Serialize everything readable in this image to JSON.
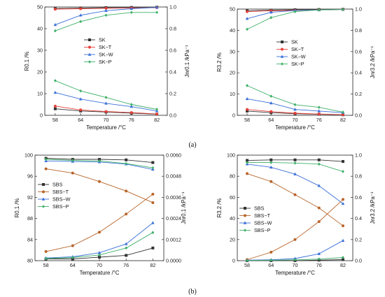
{
  "panel_labels": [
    "(a)",
    "(b)"
  ],
  "chart_data": [
    {
      "type": "line",
      "x": [
        58,
        64,
        70,
        76,
        82
      ],
      "xlabel": "Temperature /°C",
      "ylabel_left": "R0.1 /%",
      "ylabel_right": "Jnr0.1 /kPa⁻¹",
      "ylim_left": [
        0,
        50
      ],
      "yticks_left": [
        0,
        10,
        20,
        30,
        40,
        50
      ],
      "ylim_right": [
        0,
        1.0
      ],
      "yticks_right": [
        0.0,
        0.2,
        0.4,
        0.6,
        0.8,
        1.0
      ],
      "legend": "center-right",
      "legend_entries": [
        "SK",
        "SK−T",
        "SK−W",
        "SK−P"
      ],
      "series": [
        {
          "name": "SK",
          "color": "#333333",
          "axis": "left",
          "values": [
            49.3,
            49.5,
            49.7,
            49.8,
            49.9
          ]
        },
        {
          "name": "SK−T",
          "color": "#e8413a",
          "axis": "left",
          "values": [
            49.0,
            49.2,
            49.4,
            49.5,
            49.7
          ]
        },
        {
          "name": "SK−W",
          "color": "#3a6fd8",
          "axis": "left",
          "values": [
            41.8,
            46.2,
            48.3,
            49.2,
            49.8
          ]
        },
        {
          "name": "SK−P",
          "color": "#3fb06a",
          "axis": "left",
          "values": [
            39.0,
            43.3,
            46.2,
            47.5,
            47.5
          ]
        },
        {
          "name": "SK",
          "color": "#333333",
          "axis": "right",
          "values": [
            0.06,
            0.04,
            0.03,
            0.02,
            0.01
          ]
        },
        {
          "name": "SK−T",
          "color": "#e8413a",
          "axis": "right",
          "values": [
            0.085,
            0.05,
            0.035,
            0.025,
            0.012
          ]
        },
        {
          "name": "SK−W",
          "color": "#3a6fd8",
          "axis": "right",
          "values": [
            0.21,
            0.15,
            0.11,
            0.08,
            0.04
          ]
        },
        {
          "name": "SK−P",
          "color": "#3fb06a",
          "axis": "right",
          "values": [
            0.32,
            0.225,
            0.165,
            0.1,
            0.055
          ]
        }
      ]
    },
    {
      "type": "line",
      "x": [
        58,
        64,
        70,
        76,
        82
      ],
      "xlabel": "Temperature /°C",
      "ylabel_left": "R3.2 /%",
      "ylabel_right": "Jnr3.2 /kPa⁻¹",
      "ylim_left": [
        0,
        50
      ],
      "yticks_left": [
        0,
        10,
        20,
        30,
        40,
        50
      ],
      "ylim_right": [
        0,
        1.0
      ],
      "yticks_right": [
        0.0,
        0.2,
        0.4,
        0.6,
        0.8,
        1.0
      ],
      "legend": "center-right",
      "legend_entries": [
        "SK",
        "SK−T",
        "SK−W",
        "SK−P"
      ],
      "series": [
        {
          "name": "SK",
          "color": "#333333",
          "axis": "left",
          "values": [
            49.2,
            49.5,
            49.7,
            49.8,
            49.9
          ]
        },
        {
          "name": "SK−T",
          "color": "#e8413a",
          "axis": "left",
          "values": [
            48.8,
            49.2,
            49.4,
            49.6,
            49.8
          ]
        },
        {
          "name": "SK−W",
          "color": "#3a6fd8",
          "axis": "left",
          "values": [
            45.5,
            48.5,
            49.3,
            49.6,
            49.8
          ]
        },
        {
          "name": "SK−P",
          "color": "#3fb06a",
          "axis": "left",
          "values": [
            40.5,
            46.0,
            48.8,
            49.6,
            49.8
          ]
        },
        {
          "name": "SK",
          "color": "#333333",
          "axis": "right",
          "values": [
            0.04,
            0.025,
            0.015,
            0.01,
            0.005
          ]
        },
        {
          "name": "SK−T",
          "color": "#e8413a",
          "axis": "right",
          "values": [
            0.055,
            0.035,
            0.02,
            0.012,
            0.006
          ]
        },
        {
          "name": "SK−W",
          "color": "#3a6fd8",
          "axis": "right",
          "values": [
            0.155,
            0.115,
            0.055,
            0.04,
            0.025
          ]
        },
        {
          "name": "SK−P",
          "color": "#3fb06a",
          "axis": "right",
          "values": [
            0.28,
            0.18,
            0.1,
            0.075,
            0.03
          ]
        }
      ]
    },
    {
      "type": "line",
      "x": [
        58,
        64,
        70,
        76,
        82
      ],
      "xlabel": "Temperature /°C",
      "ylabel_left": "R0.1 /%",
      "ylabel_right": "Jnr0.1 /kPa⁻¹",
      "ylim_left": [
        80,
        100
      ],
      "yticks_left": [
        80,
        84,
        88,
        92,
        96,
        100
      ],
      "ylim_right": [
        0,
        0.006
      ],
      "yticks_right": [
        0.0,
        0.0012,
        0.0024,
        0.0036,
        0.0048,
        0.006
      ],
      "legend": "center-left",
      "legend_entries": [
        "SBS",
        "SBS−T",
        "SBS−W",
        "SBS−P"
      ],
      "series": [
        {
          "name": "SBS",
          "color": "#333333",
          "axis": "left",
          "values": [
            99.4,
            99.2,
            99.2,
            99.1,
            98.6
          ]
        },
        {
          "name": "SBS−T",
          "color": "#b8652a",
          "axis": "left",
          "values": [
            97.4,
            96.6,
            95.0,
            93.2,
            91.0
          ]
        },
        {
          "name": "SBS−W",
          "color": "#3a6fd8",
          "axis": "left",
          "values": [
            98.9,
            98.8,
            98.7,
            98.3,
            97.3
          ]
        },
        {
          "name": "SBS−P",
          "color": "#3fb06a",
          "axis": "left",
          "values": [
            99.2,
            99.0,
            98.9,
            98.4,
            97.6
          ]
        },
        {
          "name": "SBS",
          "color": "#333333",
          "axis": "right",
          "values": [
            0.0001,
            0.0001,
            0.0002,
            0.0003,
            0.00072
          ]
        },
        {
          "name": "SBS−T",
          "color": "#b8652a",
          "axis": "right",
          "values": [
            0.00052,
            0.00085,
            0.00162,
            0.00265,
            0.00378
          ]
        },
        {
          "name": "SBS−W",
          "color": "#3a6fd8",
          "axis": "right",
          "values": [
            0.00015,
            0.00022,
            0.00045,
            0.00095,
            0.00215
          ]
        },
        {
          "name": "SBS−P",
          "color": "#3fb06a",
          "axis": "right",
          "values": [
            0.00012,
            0.00018,
            0.00032,
            0.00072,
            0.0016
          ]
        }
      ]
    },
    {
      "type": "line",
      "x": [
        58,
        64,
        70,
        76,
        82
      ],
      "xlabel": "Temperature /°C",
      "ylabel_left": "R3.2 /%",
      "ylabel_right": "Jnr3.2 /kPa⁻¹",
      "ylim_left": [
        0,
        100
      ],
      "yticks_left": [
        0,
        20,
        40,
        60,
        80,
        100
      ],
      "ylim_right": [
        0,
        1.0
      ],
      "yticks_right": [
        0.0,
        0.2,
        0.4,
        0.6,
        0.8,
        1.0
      ],
      "legend": "center-left",
      "legend_entries": [
        "SBS",
        "SBS−T",
        "SBS−W",
        "SBS−P"
      ],
      "series": [
        {
          "name": "SBS",
          "color": "#333333",
          "axis": "left",
          "values": [
            95.0,
            95.5,
            95.5,
            95.5,
            94.0
          ]
        },
        {
          "name": "SBS−T",
          "color": "#b8652a",
          "axis": "left",
          "values": [
            82.5,
            75.0,
            62.5,
            50.0,
            33.0
          ]
        },
        {
          "name": "SBS−W",
          "color": "#3a6fd8",
          "axis": "left",
          "values": [
            91.5,
            88.5,
            82.0,
            71.0,
            54.0
          ]
        },
        {
          "name": "SBS−P",
          "color": "#3fb06a",
          "axis": "left",
          "values": [
            93.0,
            93.0,
            92.5,
            91.5,
            84.5
          ]
        },
        {
          "name": "SBS",
          "color": "#333333",
          "axis": "right",
          "values": [
            0.0,
            0.0,
            0.0,
            0.005,
            0.01
          ]
        },
        {
          "name": "SBS−T",
          "color": "#b8652a",
          "axis": "right",
          "values": [
            0.01,
            0.08,
            0.2,
            0.37,
            0.58
          ]
        },
        {
          "name": "SBS−W",
          "color": "#3a6fd8",
          "axis": "right",
          "values": [
            0.005,
            0.008,
            0.02,
            0.065,
            0.19
          ]
        },
        {
          "name": "SBS−P",
          "color": "#3fb06a",
          "axis": "right",
          "values": [
            0.002,
            0.004,
            0.008,
            0.015,
            0.03
          ]
        }
      ]
    }
  ]
}
